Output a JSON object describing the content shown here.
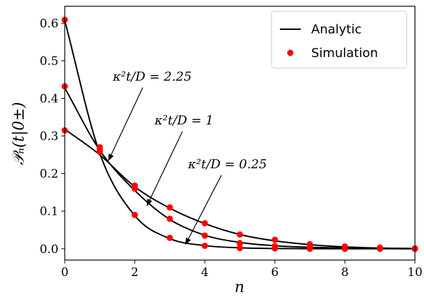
{
  "chart_data": {
    "type": "line",
    "xlabel": "n",
    "ylabel": "𝒫ₙ(t|0±)",
    "xlim": [
      0,
      10
    ],
    "ylim": [
      -0.03,
      0.645
    ],
    "xticks": [
      0,
      2,
      4,
      6,
      8,
      10
    ],
    "yticks": [
      0.0,
      0.1,
      0.2,
      0.3,
      0.4,
      0.5,
      0.6
    ],
    "xtick_labels": [
      "0",
      "2",
      "4",
      "6",
      "8",
      "10"
    ],
    "ytick_labels": [
      "0.0",
      "0.1",
      "0.2",
      "0.3",
      "0.4",
      "0.5",
      "0.6"
    ],
    "grid": false,
    "legend": {
      "placement": "top-right",
      "entries": [
        {
          "label": "Analytic",
          "marker": "line",
          "color": "#000000"
        },
        {
          "label": "Simulation",
          "marker": "dot",
          "color": "#ff0000"
        }
      ]
    },
    "series": [
      {
        "annotation": "κ²t/D = 0.25",
        "x": [
          0,
          1,
          2,
          3,
          4,
          5,
          6,
          7,
          8,
          9,
          10
        ],
        "analytic": [
          0.607,
          0.254,
          0.088,
          0.027,
          0.0085,
          0.0026,
          0.0008,
          0.0002,
          0.0001,
          0.0,
          0.0
        ],
        "simulation": [
          0.609,
          0.258,
          0.09,
          0.029,
          0.008,
          0.002,
          0.001,
          0.0,
          0.0,
          0.0,
          0.0
        ]
      },
      {
        "annotation": "κ²t/D = 1",
        "x": [
          0,
          1,
          2,
          3,
          4,
          5,
          6,
          7,
          8,
          9,
          10
        ],
        "analytic": [
          0.428,
          0.262,
          0.155,
          0.078,
          0.036,
          0.017,
          0.008,
          0.004,
          0.002,
          0.001,
          0.0
        ],
        "simulation": [
          0.432,
          0.265,
          0.16,
          0.08,
          0.035,
          0.015,
          0.007,
          0.004,
          0.002,
          0.001,
          0.0
        ]
      },
      {
        "annotation": "κ²t/D = 2.25",
        "x": [
          0,
          1,
          2,
          3,
          4,
          5,
          6,
          7,
          8,
          9,
          10
        ],
        "analytic": [
          0.318,
          0.25,
          0.165,
          0.108,
          0.067,
          0.038,
          0.021,
          0.011,
          0.005,
          0.002,
          0.001
        ],
        "simulation": [
          0.315,
          0.27,
          0.168,
          0.11,
          0.068,
          0.038,
          0.024,
          0.012,
          0.006,
          0.003,
          0.001
        ]
      }
    ],
    "annotations": [
      {
        "text": "κ²t/D = 2.25",
        "arrow_to": [
          1.25,
          0.235
        ]
      },
      {
        "text": "κ²t/D = 1",
        "arrow_to": [
          2.35,
          0.115
        ]
      },
      {
        "text": "κ²t/D = 0.25",
        "arrow_to": [
          3.45,
          0.012
        ]
      }
    ]
  }
}
